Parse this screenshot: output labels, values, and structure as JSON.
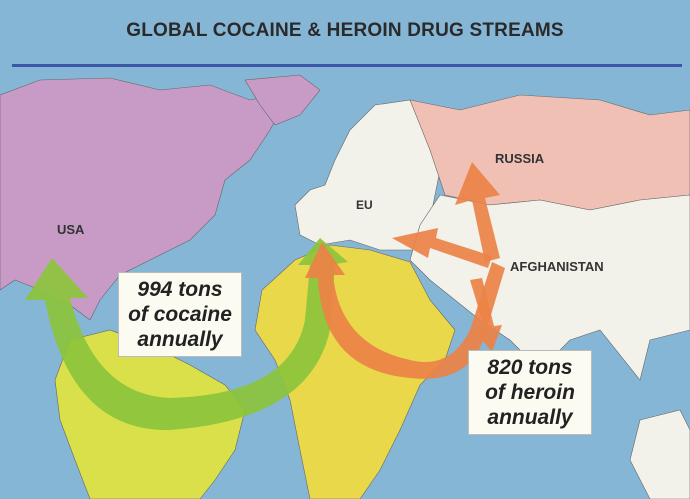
{
  "title": "GLOBAL COCAINE & HEROIN DRUG STREAMS",
  "regions": {
    "usa": "USA",
    "eu": "EU",
    "russia": "RUSSIA",
    "afghanistan": "AFGHANISTAN"
  },
  "cocaine_box": {
    "line1": "994 tons",
    "line2": "of cocaine",
    "line3": "annually"
  },
  "heroin_box": {
    "line1": "820 tons",
    "line2": "of heroin",
    "line3": "annually"
  },
  "colors": {
    "ocean": "#86b6d6",
    "north_america": "#c79bc6",
    "south_america": "#d9e04a",
    "africa": "#e8d84a",
    "europe_asia": "#f2f2ea",
    "russia": "#f0c0b4",
    "cocaine_arrow": "#8cc43c",
    "heroin_arrow": "#ec8246"
  }
}
